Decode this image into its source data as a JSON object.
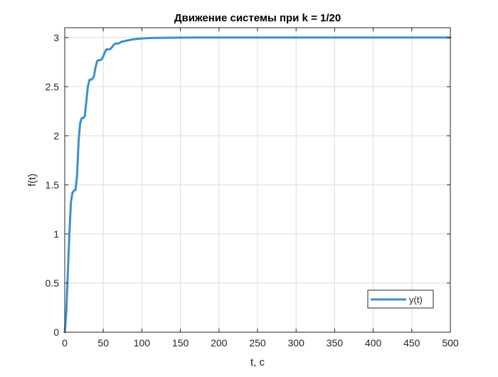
{
  "chart_data": {
    "type": "line",
    "title": "Движение системы при k = 1/20",
    "xlabel": "t, c",
    "ylabel": "f(t)",
    "xlim": [
      0,
      500
    ],
    "ylim": [
      0,
      3.1
    ],
    "xticks": [
      0,
      50,
      100,
      150,
      200,
      250,
      300,
      350,
      400,
      450,
      500
    ],
    "yticks": [
      0,
      0.5,
      1,
      1.5,
      2,
      2.5,
      3
    ],
    "xtick_labels": [
      "0",
      "50",
      "100",
      "150",
      "200",
      "250",
      "300",
      "350",
      "400",
      "450",
      "500"
    ],
    "ytick_labels": [
      "0",
      "0.5",
      "1",
      "1.5",
      "2",
      "2.5",
      "3"
    ],
    "grid": true,
    "legend_position": "bottom-right",
    "series": [
      {
        "name": "y(t)",
        "color": "#3a8fd0",
        "x": [
          0,
          2,
          4,
          6,
          8,
          10,
          12,
          14,
          16,
          18,
          20,
          22,
          24,
          26,
          28,
          30,
          32,
          34,
          36,
          38,
          40,
          42,
          44,
          46,
          48,
          50,
          52,
          54,
          56,
          58,
          60,
          62,
          64,
          66,
          68,
          70,
          72,
          74,
          76,
          78,
          80,
          82,
          84,
          86,
          88,
          90,
          95,
          100,
          105,
          110,
          120,
          130,
          140,
          150,
          175,
          200,
          250,
          300,
          350,
          400,
          450,
          500
        ],
        "y": [
          0,
          0.2,
          0.6,
          1.0,
          1.32,
          1.42,
          1.44,
          1.45,
          1.6,
          1.95,
          2.13,
          2.18,
          2.18,
          2.2,
          2.35,
          2.5,
          2.57,
          2.57,
          2.58,
          2.61,
          2.7,
          2.76,
          2.77,
          2.77,
          2.78,
          2.81,
          2.85,
          2.88,
          2.88,
          2.88,
          2.89,
          2.91,
          2.93,
          2.94,
          2.94,
          2.94,
          2.95,
          2.96,
          2.96,
          2.965,
          2.97,
          2.97,
          2.975,
          2.978,
          2.98,
          2.983,
          2.987,
          2.99,
          2.993,
          2.995,
          2.997,
          2.998,
          2.999,
          2.9995,
          3.0,
          3.0,
          3.0,
          3.0,
          3.0,
          3.0,
          3.0,
          3.0
        ]
      }
    ]
  }
}
